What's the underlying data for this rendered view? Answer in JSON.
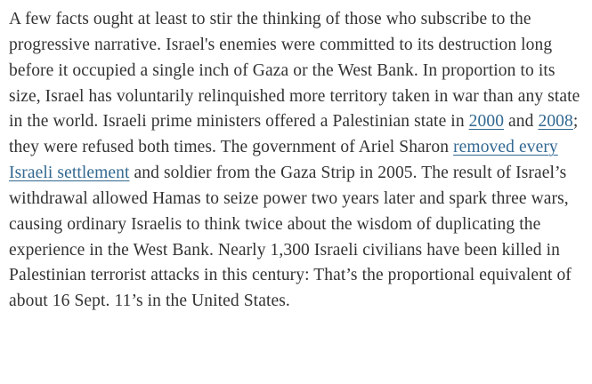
{
  "article": {
    "background": "#ffffff",
    "text_color": "#333333",
    "link_color": "#326891",
    "paragraph": {
      "segments": [
        {
          "name": "paragraph-text",
          "link": false,
          "text": "A few facts ought at least to stir the thinking of those who subscribe to the progressive narrative. Israel's enemies were committed to its destruction long before it occupied a single inch of Gaza or the West Bank. In proportion to its size, Israel has voluntarily relinquished more territory taken in war than any state in the world. Israeli prime ministers offered a Palestinian state in "
        },
        {
          "name": "link-2000",
          "link": true,
          "text": "2000"
        },
        {
          "name": "paragraph-text",
          "link": false,
          "text": " and "
        },
        {
          "name": "link-2008",
          "link": true,
          "text": "2008"
        },
        {
          "name": "paragraph-text",
          "link": false,
          "text": "; they were refused both times. The government of Ariel Sharon "
        },
        {
          "name": "link-removed-every-israeli-settlement",
          "link": true,
          "text": "removed every Israeli settlement"
        },
        {
          "name": "paragraph-text",
          "link": false,
          "text": " and soldier from the Gaza Strip in 2005. The result of Israel’s withdrawal allowed Hamas to seize power two years later and spark three wars, causing ordinary Israelis to think twice about the wisdom of duplicating the experience in the West Bank. Nearly 1,300 Israeli civilians have been killed in Palestinian terrorist attacks in this century: That’s the proportional equivalent of about 16 Sept. 11’s in the United States."
        }
      ]
    }
  }
}
